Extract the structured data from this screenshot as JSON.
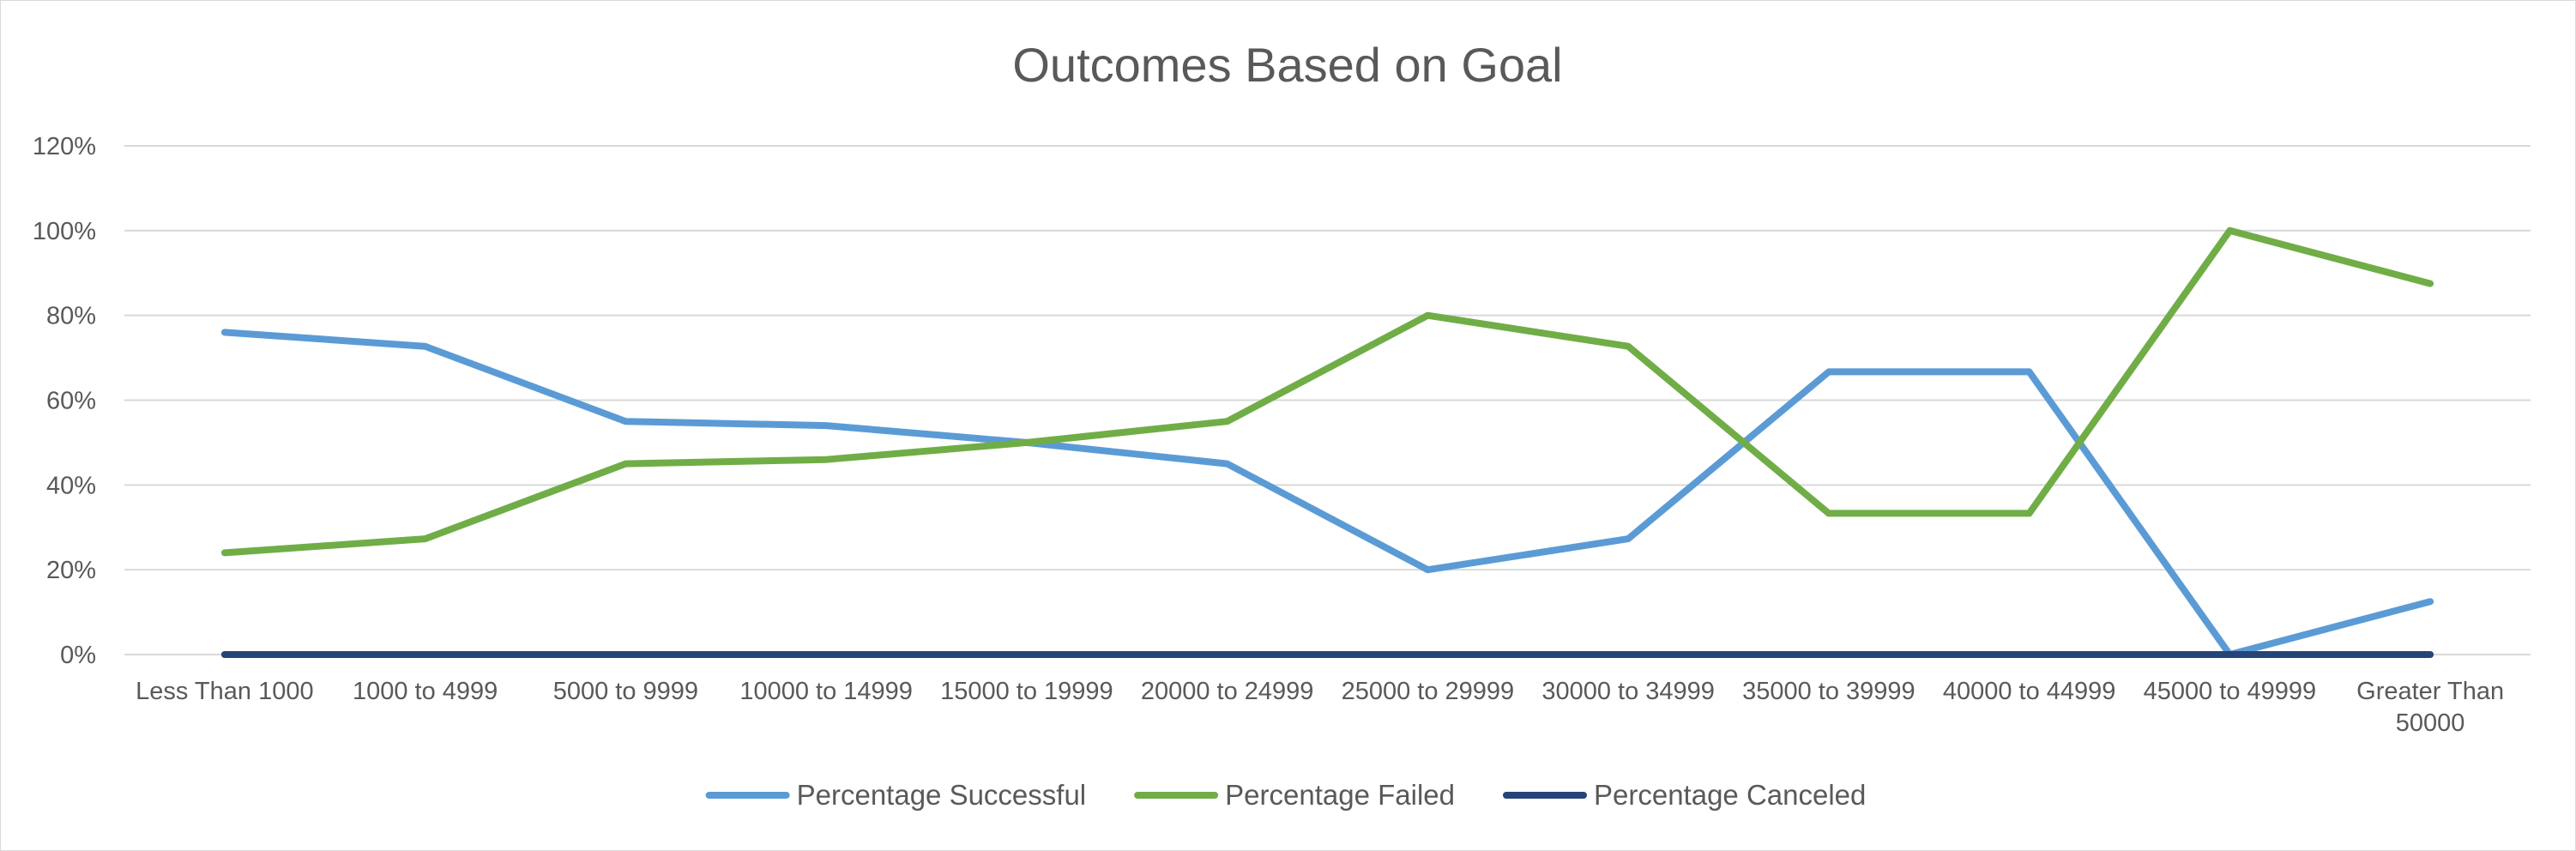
{
  "chart_data": {
    "type": "line",
    "title": "Outcomes Based on Goal",
    "xlabel": "",
    "ylabel": "",
    "ylim": [
      0,
      120
    ],
    "yticks": [
      "0%",
      "20%",
      "40%",
      "60%",
      "80%",
      "100%",
      "120%"
    ],
    "grid": true,
    "legend_position": "bottom",
    "categories": [
      [
        "Less Than 1000"
      ],
      [
        "1000 to 4999"
      ],
      [
        "5000 to 9999"
      ],
      [
        "10000 to 14999"
      ],
      [
        "15000 to 19999"
      ],
      [
        "20000 to 24999"
      ],
      [
        "25000 to 29999"
      ],
      [
        "30000 to 34999"
      ],
      [
        "35000 to 39999"
      ],
      [
        "40000 to 44999"
      ],
      [
        "45000 to 49999"
      ],
      [
        "Greater Than",
        "50000"
      ]
    ],
    "series": [
      {
        "name": "Percentage Successful",
        "color": "#5b9bd5",
        "values": [
          76,
          72.7,
          55,
          54,
          50,
          45,
          20,
          27.3,
          66.7,
          66.7,
          0,
          12.5
        ]
      },
      {
        "name": "Percentage Failed",
        "color": "#70ad47",
        "values": [
          24,
          27.3,
          45,
          46,
          50,
          55,
          80,
          72.7,
          33.3,
          33.3,
          100,
          87.5
        ]
      },
      {
        "name": "Percentage Canceled",
        "color": "#264478",
        "values": [
          0,
          0,
          0,
          0,
          0,
          0,
          0,
          0,
          0,
          0,
          0,
          0
        ]
      }
    ]
  }
}
